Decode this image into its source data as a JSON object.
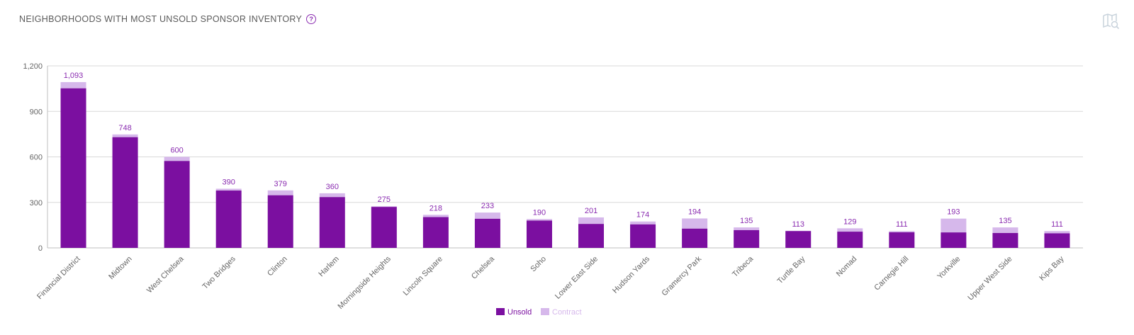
{
  "header": {
    "title": "NEIGHBORHOODS WITH MOST UNSOLD SPONSOR INVENTORY",
    "help_icon": "question-circle-icon",
    "map_icon": "map-search-icon"
  },
  "colors": {
    "unsold": "#7b0fa0",
    "contract": "#d6b8eb",
    "label": "#8a2cb0",
    "grid": "#d9d9d9",
    "axis_text": "#666666"
  },
  "chart_data": {
    "type": "bar",
    "stacked": true,
    "categories": [
      "Financial District",
      "Midtown",
      "West Chelsea",
      "Two Bridges",
      "Clinton",
      "Harlem",
      "Morningside Heights",
      "Lincoln Square",
      "Chelsea",
      "Soho",
      "Lower East Side",
      "Hudson Yards",
      "Gramercy Park",
      "Tribeca",
      "Turtle Bay",
      "Nomad",
      "Carnegie Hill",
      "Yorkville",
      "Upper West Side",
      "Kips Bay"
    ],
    "series": [
      {
        "name": "Unsold",
        "values": [
          1052,
          730,
          573,
          378,
          347,
          335,
          270,
          203,
          192,
          180,
          158,
          155,
          127,
          117,
          111,
          107,
          103,
          102,
          98,
          96
        ]
      },
      {
        "name": "Contract",
        "values": [
          41,
          18,
          27,
          12,
          32,
          25,
          5,
          15,
          41,
          10,
          43,
          19,
          67,
          18,
          2,
          22,
          8,
          91,
          37,
          15
        ]
      }
    ],
    "totals": [
      "1,093",
      "748",
      "600",
      "390",
      "379",
      "360",
      "275",
      "218",
      "233",
      "190",
      "201",
      "174",
      "194",
      "135",
      "113",
      "129",
      "111",
      "193",
      "135",
      "111"
    ],
    "yticks": [
      "0",
      "300",
      "600",
      "900",
      "1,200"
    ],
    "ylim": [
      0,
      1200
    ],
    "grid": true,
    "legend_position": "bottom-center"
  }
}
